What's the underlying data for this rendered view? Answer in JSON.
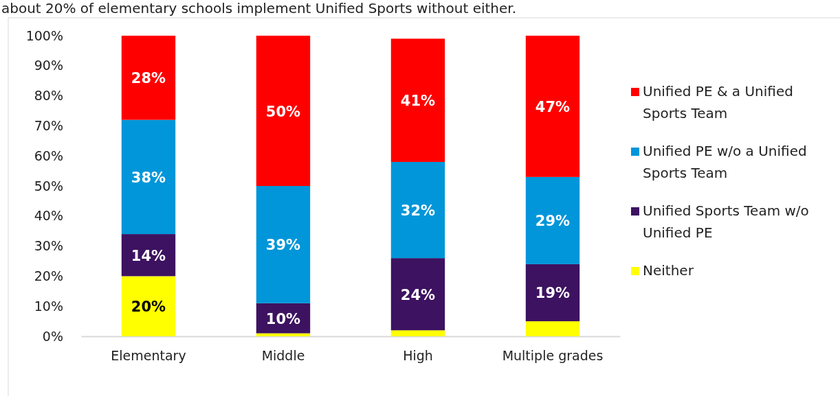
{
  "chart_data": {
    "type": "bar",
    "stacked": true,
    "title": "about 20% of elementary schools implement Unified Sports without either.",
    "categories": [
      "Elementary",
      "Middle",
      "High",
      "Multiple grades"
    ],
    "series": [
      {
        "name": "Neither",
        "color": "#ffff00",
        "values": [
          20,
          1,
          2,
          5
        ],
        "value_labels": [
          "20%",
          null,
          null,
          null
        ]
      },
      {
        "name": "Unified Sports Team w/o Unified PE",
        "color": "#3d1261",
        "values": [
          14,
          10,
          24,
          19
        ],
        "value_labels": [
          "14%",
          "10%",
          "24%",
          "19%"
        ]
      },
      {
        "name": "Unified PE w/o a Unified Sports Team",
        "color": "#0096d9",
        "values": [
          38,
          39,
          32,
          29
        ],
        "value_labels": [
          "38%",
          "39%",
          "32%",
          "29%"
        ]
      },
      {
        "name": "Unified PE & a Unified Sports Team",
        "color": "#ff0000",
        "values": [
          28,
          50,
          41,
          47
        ],
        "value_labels": [
          "28%",
          "50%",
          "41%",
          "47%"
        ]
      }
    ],
    "ylim": [
      0,
      100
    ],
    "yticks": [
      {
        "value": 0,
        "label": "0%"
      },
      {
        "value": 10,
        "label": "10%"
      },
      {
        "value": 20,
        "label": "20%"
      },
      {
        "value": 30,
        "label": "30%"
      },
      {
        "value": 40,
        "label": "40%"
      },
      {
        "value": 50,
        "label": "50%"
      },
      {
        "value": 60,
        "label": "60%"
      },
      {
        "value": 70,
        "label": "70%"
      },
      {
        "value": 80,
        "label": "80%"
      },
      {
        "value": 90,
        "label": "90%"
      },
      {
        "value": 100,
        "label": "100%"
      }
    ],
    "grid": false,
    "legend": "right"
  }
}
